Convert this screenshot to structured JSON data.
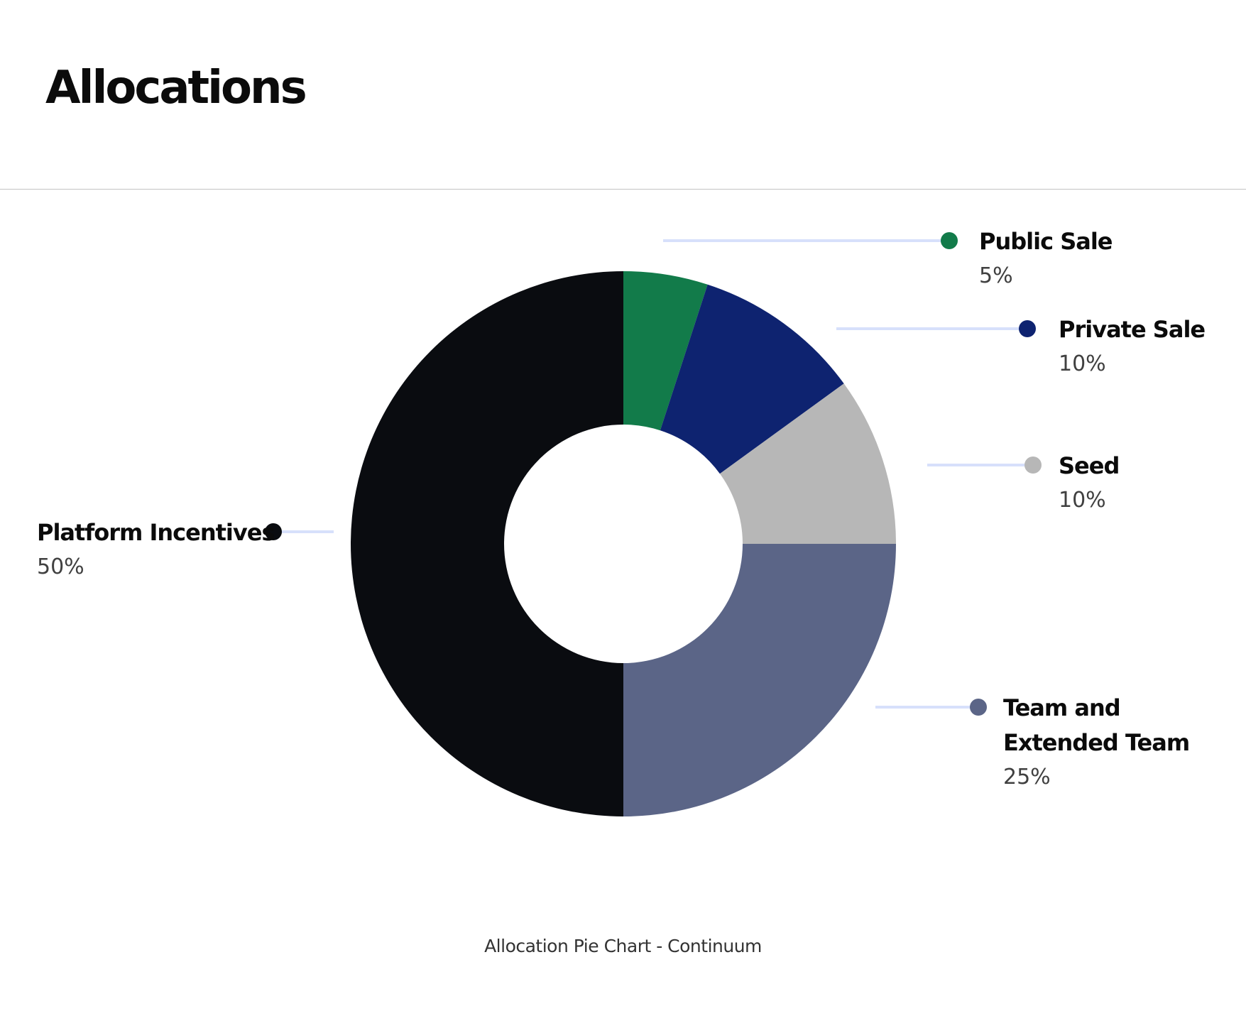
{
  "page": {
    "title": "Allocations"
  },
  "chart_data": {
    "type": "pie",
    "donut": true,
    "caption": "Allocation Pie Chart - Continuum",
    "start": "12 o'clock, clockwise",
    "slices": [
      {
        "label": "Public Sale",
        "label_lines": [
          "Public Sale"
        ],
        "value": 5,
        "display": "5%",
        "color": "#127b4a"
      },
      {
        "label": "Private Sale",
        "label_lines": [
          "Private Sale"
        ],
        "value": 10,
        "display": "10%",
        "color": "#0e2370"
      },
      {
        "label": "Seed",
        "label_lines": [
          "Seed"
        ],
        "value": 10,
        "display": "10%",
        "color": "#b7b7b7"
      },
      {
        "label": "Team and Extended Team",
        "label_lines": [
          "Team and",
          "Extended Team"
        ],
        "value": 25,
        "display": "25%",
        "color": "#5b6587"
      },
      {
        "label": "Platform Incentives",
        "label_lines": [
          "Platform Incentives"
        ],
        "value": 50,
        "display": "50%",
        "color": "#0a0c10"
      }
    ],
    "leader_line_color": "#d7e0fb"
  }
}
